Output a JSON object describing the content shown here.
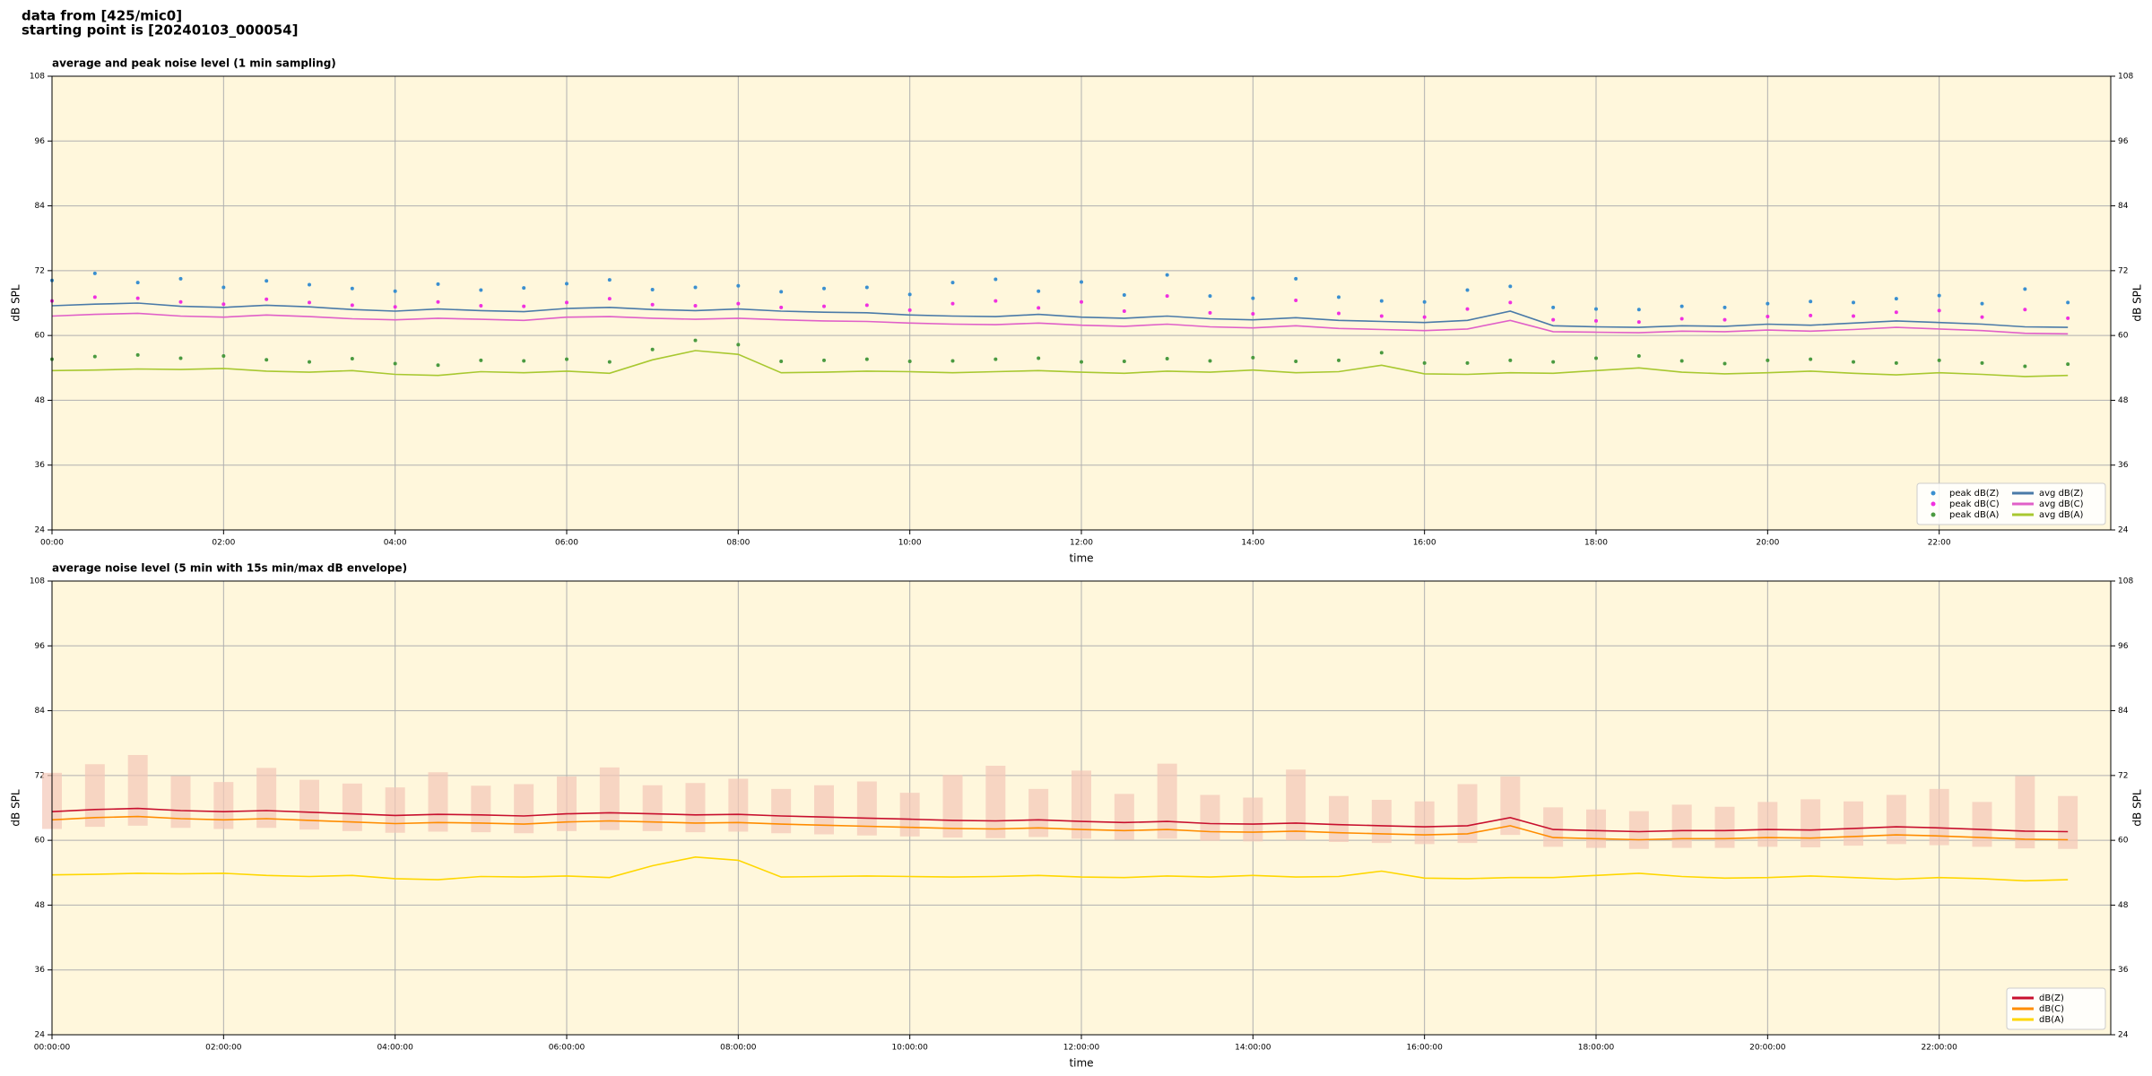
{
  "header": [
    "data from [425/mic0]",
    "starting point is [20240103_000054]"
  ],
  "chart_data": [
    {
      "type": "line",
      "title": "average and peak noise level (1 min sampling)",
      "xlabel": "time",
      "ylabel": "dB SPL",
      "xlim": [
        0,
        24
      ],
      "ylim": [
        24,
        108
      ],
      "yticks": [
        24,
        36,
        48,
        60,
        72,
        84,
        96,
        108
      ],
      "xticks": [
        {
          "value": 0,
          "label": "00:00"
        },
        {
          "value": 2,
          "label": "02:00"
        },
        {
          "value": 4,
          "label": "04:00"
        },
        {
          "value": 6,
          "label": "06:00"
        },
        {
          "value": 8,
          "label": "08:00"
        },
        {
          "value": 10,
          "label": "10:00"
        },
        {
          "value": 12,
          "label": "12:00"
        },
        {
          "value": 14,
          "label": "14:00"
        },
        {
          "value": 16,
          "label": "16:00"
        },
        {
          "value": 18,
          "label": "18:00"
        },
        {
          "value": 20,
          "label": "20:00"
        },
        {
          "value": 22,
          "label": "22:00"
        }
      ],
      "grid": true,
      "background": "#fff7dc",
      "legend": "lower right",
      "legend_columns": 2,
      "x": [
        0,
        0.5,
        1,
        1.5,
        2,
        2.5,
        3,
        3.5,
        4,
        4.5,
        5,
        5.5,
        6,
        6.5,
        7,
        7.5,
        8,
        8.5,
        9,
        9.5,
        10,
        10.5,
        11,
        11.5,
        12,
        12.5,
        13,
        13.5,
        14,
        14.5,
        15,
        15.5,
        16,
        16.5,
        17,
        17.5,
        18,
        18.5,
        19,
        19.5,
        20,
        20.5,
        21,
        21.5,
        22,
        22.5,
        23,
        23.5
      ],
      "series": [
        {
          "name": "peak dB(Z)",
          "type": "scatter",
          "color": "#3a8fd0",
          "values": [
            70.2,
            71.5,
            69.8,
            70.5,
            68.9,
            70.1,
            69.4,
            68.7,
            68.2,
            69.5,
            68.4,
            68.8,
            69.6,
            70.3,
            68.5,
            68.9,
            69.2,
            68.1,
            68.7,
            68.9,
            67.6,
            69.8,
            70.4,
            68.2,
            69.9,
            67.5,
            71.2,
            67.3,
            66.9,
            70.5,
            67.1,
            66.4,
            66.2,
            68.4,
            69.1,
            65.2,
            64.9,
            64.8,
            65.4,
            65.2,
            65.9,
            66.3,
            66.1,
            66.8,
            67.4,
            65.9,
            68.6,
            66.1
          ]
        },
        {
          "name": "peak dB(C)",
          "type": "scatter",
          "color": "#f030e0",
          "values": [
            66.4,
            67.1,
            66.9,
            66.2,
            65.8,
            66.7,
            66.1,
            65.6,
            65.3,
            66.2,
            65.5,
            65.4,
            66.1,
            66.8,
            65.7,
            65.5,
            65.9,
            65.2,
            65.4,
            65.6,
            64.7,
            65.9,
            66.4,
            65.1,
            66.2,
            64.5,
            67.3,
            64.2,
            64.0,
            66.5,
            64.1,
            63.6,
            63.4,
            64.9,
            66.1,
            62.9,
            62.7,
            62.5,
            63.1,
            62.9,
            63.5,
            63.7,
            63.6,
            64.3,
            64.6,
            63.4,
            64.8,
            63.2
          ]
        },
        {
          "name": "peak dB(A)",
          "type": "scatter",
          "color": "#4a9a40",
          "values": [
            55.6,
            56.1,
            56.4,
            55.8,
            56.2,
            55.5,
            55.1,
            55.7,
            54.8,
            54.5,
            55.4,
            55.3,
            55.6,
            55.1,
            57.4,
            59.1,
            58.3,
            55.2,
            55.4,
            55.6,
            55.2,
            55.3,
            55.6,
            55.8,
            55.1,
            55.2,
            55.7,
            55.3,
            55.9,
            55.2,
            55.4,
            56.8,
            54.9,
            54.9,
            55.4,
            55.1,
            55.8,
            56.2,
            55.3,
            54.8,
            55.4,
            55.6,
            55.1,
            54.9,
            55.4,
            54.9,
            54.3,
            54.7
          ]
        },
        {
          "name": "avg dB(Z)",
          "type": "line",
          "color": "#4a7aa8",
          "values": [
            65.5,
            65.8,
            66,
            65.4,
            65.2,
            65.6,
            65.3,
            64.8,
            64.5,
            64.9,
            64.6,
            64.4,
            65,
            65.2,
            64.8,
            64.6,
            64.9,
            64.5,
            64.3,
            64.2,
            63.8,
            63.6,
            63.5,
            63.9,
            63.4,
            63.2,
            63.6,
            63.1,
            62.9,
            63.3,
            62.8,
            62.6,
            62.4,
            62.8,
            64.5,
            61.8,
            61.6,
            61.5,
            61.8,
            61.7,
            62.1,
            61.9,
            62.3,
            62.7,
            62.4,
            62.1,
            61.6,
            61.5
          ]
        },
        {
          "name": "avg dB(C)",
          "type": "line",
          "color": "#e060c8",
          "values": [
            63.6,
            63.9,
            64.1,
            63.6,
            63.4,
            63.8,
            63.5,
            63.1,
            62.9,
            63.2,
            63,
            62.8,
            63.4,
            63.5,
            63.2,
            63,
            63.2,
            62.9,
            62.7,
            62.6,
            62.3,
            62.1,
            62,
            62.3,
            61.9,
            61.7,
            62.1,
            61.6,
            61.4,
            61.8,
            61.3,
            61.1,
            60.9,
            61.2,
            62.8,
            60.7,
            60.6,
            60.5,
            60.8,
            60.7,
            61,
            60.8,
            61.1,
            61.5,
            61.2,
            60.9,
            60.4,
            60.3
          ]
        },
        {
          "name": "avg dB(A)",
          "type": "line",
          "color": "#a8c830",
          "values": [
            53.5,
            53.6,
            53.8,
            53.7,
            53.9,
            53.4,
            53.2,
            53.5,
            52.8,
            52.6,
            53.3,
            53.1,
            53.4,
            53.0,
            55.5,
            57.2,
            56.5,
            53.1,
            53.2,
            53.4,
            53.3,
            53.1,
            53.3,
            53.5,
            53.2,
            53.0,
            53.4,
            53.2,
            53.6,
            53.1,
            53.3,
            54.5,
            52.9,
            52.8,
            53.1,
            53.0,
            53.5,
            54.0,
            53.2,
            52.9,
            53.1,
            53.4,
            53.0,
            52.7,
            53.1,
            52.8,
            52.4,
            52.6
          ]
        }
      ]
    },
    {
      "type": "line",
      "title": "average noise level (5 min with 15s min/max dB envelope)",
      "xlabel": "time",
      "ylabel": "dB SPL",
      "xlim": [
        0,
        24
      ],
      "ylim": [
        24,
        108
      ],
      "yticks": [
        24,
        36,
        48,
        60,
        72,
        84,
        96,
        108
      ],
      "xticks": [
        {
          "value": 0,
          "label": "00:00:00"
        },
        {
          "value": 2,
          "label": "02:00:00"
        },
        {
          "value": 4,
          "label": "04:00:00"
        },
        {
          "value": 6,
          "label": "06:00:00"
        },
        {
          "value": 8,
          "label": "08:00:00"
        },
        {
          "value": 10,
          "label": "10:00:00"
        },
        {
          "value": 12,
          "label": "12:00:00"
        },
        {
          "value": 14,
          "label": "14:00:00"
        },
        {
          "value": 16,
          "label": "16:00:00"
        },
        {
          "value": 18,
          "label": "18:00:00"
        },
        {
          "value": 20,
          "label": "20:00:00"
        },
        {
          "value": 22,
          "label": "22:00:00"
        }
      ],
      "grid": true,
      "background": "#fff7dc",
      "legend": "lower right",
      "legend_columns": 1,
      "x": [
        0,
        0.5,
        1,
        1.5,
        2,
        2.5,
        3,
        3.5,
        4,
        4.5,
        5,
        5.5,
        6,
        6.5,
        7,
        7.5,
        8,
        8.5,
        9,
        9.5,
        10,
        10.5,
        11,
        11.5,
        12,
        12.5,
        13,
        13.5,
        14,
        14.5,
        15,
        15.5,
        16,
        16.5,
        17,
        17.5,
        18,
        18.5,
        19,
        19.5,
        20,
        20.5,
        21,
        21.5,
        22,
        22.5,
        23,
        23.5
      ],
      "envelope": {
        "color": "#f5c8b8",
        "upper": [
          72.5,
          74.1,
          75.8,
          71.9,
          70.8,
          73.4,
          71.2,
          70.5,
          69.8,
          72.6,
          70.1,
          70.4,
          71.8,
          73.5,
          70.2,
          70.6,
          71.4,
          69.5,
          70.2,
          70.9,
          68.8,
          72.1,
          73.8,
          69.5,
          72.9,
          68.6,
          74.2,
          68.4,
          67.9,
          73.1,
          68.2,
          67.5,
          67.2,
          70.4,
          71.8,
          66.1,
          65.7,
          65.4,
          66.6,
          66.2,
          67.1,
          67.6,
          67.2,
          68.4,
          69.5,
          67.1,
          71.9,
          68.2
        ],
        "lower": [
          62.1,
          62.5,
          62.7,
          62.3,
          62.1,
          62.3,
          62.0,
          61.7,
          61.4,
          61.6,
          61.5,
          61.3,
          61.7,
          61.9,
          61.7,
          61.5,
          61.6,
          61.3,
          61.1,
          60.9,
          60.7,
          60.5,
          60.4,
          60.6,
          60.3,
          60.1,
          60.3,
          59.9,
          59.8,
          60.0,
          59.7,
          59.5,
          59.3,
          59.5,
          61.0,
          58.8,
          58.6,
          58.4,
          58.6,
          58.6,
          58.8,
          58.7,
          59.0,
          59.3,
          59.1,
          58.8,
          58.5,
          58.4
        ]
      },
      "series": [
        {
          "name": "dB(Z)",
          "type": "line",
          "color": "#c8102e",
          "values": [
            65.3,
            65.7,
            65.9,
            65.5,
            65.3,
            65.5,
            65.2,
            64.9,
            64.6,
            64.8,
            64.7,
            64.5,
            64.9,
            65.1,
            64.9,
            64.7,
            64.8,
            64.5,
            64.3,
            64.1,
            63.9,
            63.7,
            63.6,
            63.8,
            63.5,
            63.3,
            63.5,
            63.1,
            63.0,
            63.2,
            62.9,
            62.7,
            62.5,
            62.7,
            64.2,
            62.0,
            61.8,
            61.6,
            61.8,
            61.8,
            62.0,
            61.9,
            62.2,
            62.5,
            62.3,
            62.0,
            61.7,
            61.6
          ]
        },
        {
          "name": "dB(C)",
          "type": "line",
          "color": "#ff8c00",
          "values": [
            63.8,
            64.2,
            64.4,
            64.0,
            63.8,
            64.0,
            63.7,
            63.4,
            63.1,
            63.3,
            63.2,
            63.0,
            63.4,
            63.6,
            63.4,
            63.2,
            63.3,
            63.0,
            62.8,
            62.6,
            62.4,
            62.2,
            62.1,
            62.3,
            62.0,
            61.8,
            62.0,
            61.6,
            61.5,
            61.7,
            61.4,
            61.2,
            61.0,
            61.2,
            62.7,
            60.5,
            60.3,
            60.1,
            60.3,
            60.3,
            60.5,
            60.4,
            60.7,
            61.0,
            60.8,
            60.5,
            60.2,
            60.1
          ]
        },
        {
          "name": "dB(A)",
          "type": "line",
          "color": "#ffd700",
          "values": [
            53.6,
            53.7,
            53.9,
            53.8,
            53.9,
            53.5,
            53.3,
            53.5,
            52.9,
            52.7,
            53.3,
            53.2,
            53.4,
            53.1,
            55.3,
            56.9,
            56.3,
            53.2,
            53.3,
            53.4,
            53.3,
            53.2,
            53.3,
            53.5,
            53.2,
            53.1,
            53.4,
            53.2,
            53.5,
            53.2,
            53.3,
            54.3,
            53.0,
            52.9,
            53.1,
            53.1,
            53.5,
            53.9,
            53.3,
            53.0,
            53.1,
            53.4,
            53.1,
            52.8,
            53.1,
            52.9,
            52.5,
            52.7
          ]
        }
      ]
    }
  ]
}
